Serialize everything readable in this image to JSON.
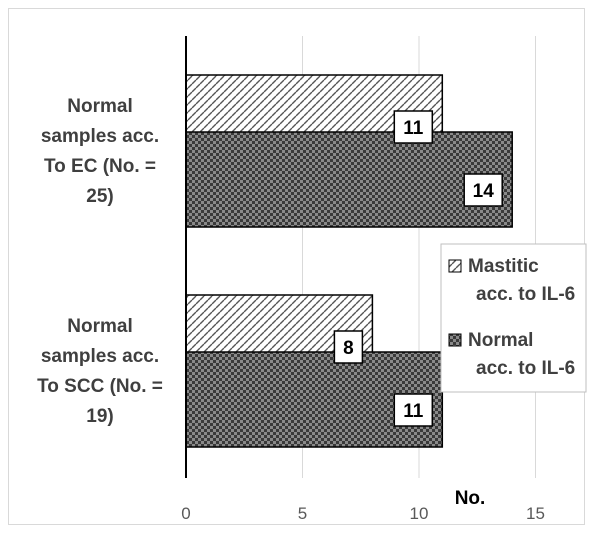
{
  "chart_data": {
    "type": "bar",
    "orientation": "horizontal",
    "title": "",
    "categories": [
      [
        "Normal",
        "samples acc.",
        "To EC (No. =",
        "25)"
      ],
      [
        "Normal",
        "samples acc.",
        "To SCC (No. =",
        "19)"
      ]
    ],
    "series": [
      {
        "name": [
          "Mastitic",
          "acc. to IL-6"
        ],
        "values": [
          11,
          8
        ],
        "pattern": "diagonal-hatch"
      },
      {
        "name": [
          "Normal",
          "acc. to IL-6"
        ],
        "values": [
          14,
          11
        ],
        "pattern": "dark-checker"
      }
    ],
    "xlabel": "No.",
    "ylabel": "",
    "xlim": [
      0,
      15
    ],
    "xticks": [
      0,
      5,
      10,
      15
    ],
    "grid": "vertical",
    "legend": "right",
    "colors": {
      "border": "#000000",
      "grid": "#d9d9d9",
      "hatch": "#555555",
      "dark": "#3a3a3a"
    }
  }
}
